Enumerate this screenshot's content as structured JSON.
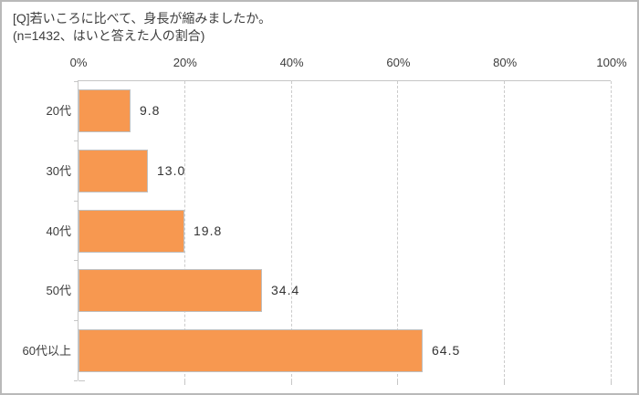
{
  "window": {
    "background": "#ffffff",
    "border_color": "#b9b9b9"
  },
  "chart_data": {
    "type": "bar",
    "orientation": "horizontal",
    "title": "[Q]若いころに比べて、身長が縮みましたか。",
    "subtitle": "(n=1432、はいと答えた人の割合)",
    "categories": [
      "20代",
      "30代",
      "40代",
      "50代",
      "60代以上"
    ],
    "values": [
      9.8,
      13.0,
      19.8,
      34.4,
      64.5
    ],
    "value_labels": [
      "9.8",
      "13.0",
      "19.8",
      "34.4",
      "64.5"
    ],
    "x_ticks": [
      "0%",
      "20%",
      "40%",
      "60%",
      "80%",
      "100%"
    ],
    "xlabel": "",
    "ylabel": "",
    "xlim": [
      0,
      100
    ],
    "grid": "vertical-dashed",
    "legend": "none",
    "colors": {
      "bar_fill": "#f79850",
      "bar_border": "#bfbfbf",
      "axis_line": "#c6c6c6",
      "gridline": "#cbcbcb",
      "text": "#3d3d3d"
    }
  }
}
